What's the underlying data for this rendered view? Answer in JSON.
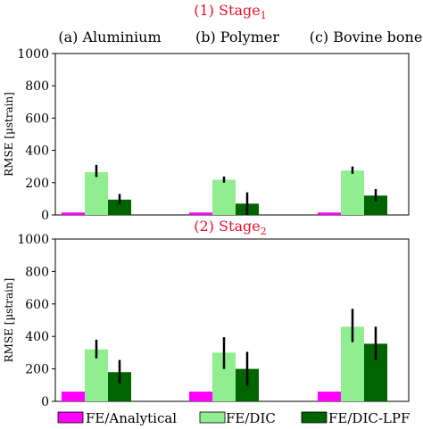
{
  "figure": {
    "categories": [
      "(a) Aluminium",
      "(b) Polymer",
      "(c) Bovine bone"
    ],
    "ylabel": "RMSE [µstrain]",
    "legend": [
      {
        "label": "FE/Analytical",
        "color": "#ff00ff"
      },
      {
        "label": "FE/DIC",
        "color": "#90ee90"
      },
      {
        "label": "FE/DIC-LPF",
        "color": "#006400"
      }
    ]
  },
  "chart_data": [
    {
      "type": "bar",
      "title": "(1) Stage",
      "title_subscript": "1",
      "title_color": "#e8102a",
      "ylabel": "RMSE [µstrain]",
      "ylim": [
        0,
        1000
      ],
      "yticks": [
        0,
        200,
        400,
        600,
        800,
        1000
      ],
      "categories": [
        "(a) Aluminium",
        "(b) Polymer",
        "(c) Bovine bone"
      ],
      "series": [
        {
          "name": "FE/Analytical",
          "color": "#ff00ff",
          "values": [
            15,
            15,
            15
          ],
          "errors": [
            [
              15,
              15
            ],
            [
              15,
              15
            ],
            [
              15,
              15
            ]
          ]
        },
        {
          "name": "FE/DIC",
          "color": "#90ee90",
          "values": [
            265,
            218,
            275
          ],
          "errors": [
            [
              235,
              310
            ],
            [
              200,
              238
            ],
            [
              255,
              300
            ]
          ]
        },
        {
          "name": "FE/DIC-LPF",
          "color": "#006400",
          "values": [
            95,
            70,
            120
          ],
          "errors": [
            [
              65,
              130
            ],
            [
              0,
              140
            ],
            [
              85,
              160
            ]
          ]
        }
      ]
    },
    {
      "type": "bar",
      "title": "(2) Stage",
      "title_subscript": "2",
      "title_color": "#e8102a",
      "ylabel": "RMSE [µstrain]",
      "ylim": [
        0,
        1000
      ],
      "yticks": [
        0,
        200,
        400,
        600,
        800,
        1000
      ],
      "categories": [
        "(a) Aluminium",
        "(b) Polymer",
        "(c) Bovine bone"
      ],
      "series": [
        {
          "name": "FE/Analytical",
          "color": "#ff00ff",
          "values": [
            60,
            60,
            60
          ],
          "errors": [
            [
              60,
              60
            ],
            [
              60,
              60
            ],
            [
              60,
              60
            ]
          ]
        },
        {
          "name": "FE/DIC",
          "color": "#90ee90",
          "values": [
            320,
            300,
            460
          ],
          "errors": [
            [
              265,
              380
            ],
            [
              200,
              395
            ],
            [
              365,
              570
            ]
          ]
        },
        {
          "name": "FE/DIC-LPF",
          "color": "#006400",
          "values": [
            180,
            200,
            355
          ],
          "errors": [
            [
              110,
              255
            ],
            [
              95,
              305
            ],
            [
              255,
              460
            ]
          ]
        }
      ]
    }
  ]
}
